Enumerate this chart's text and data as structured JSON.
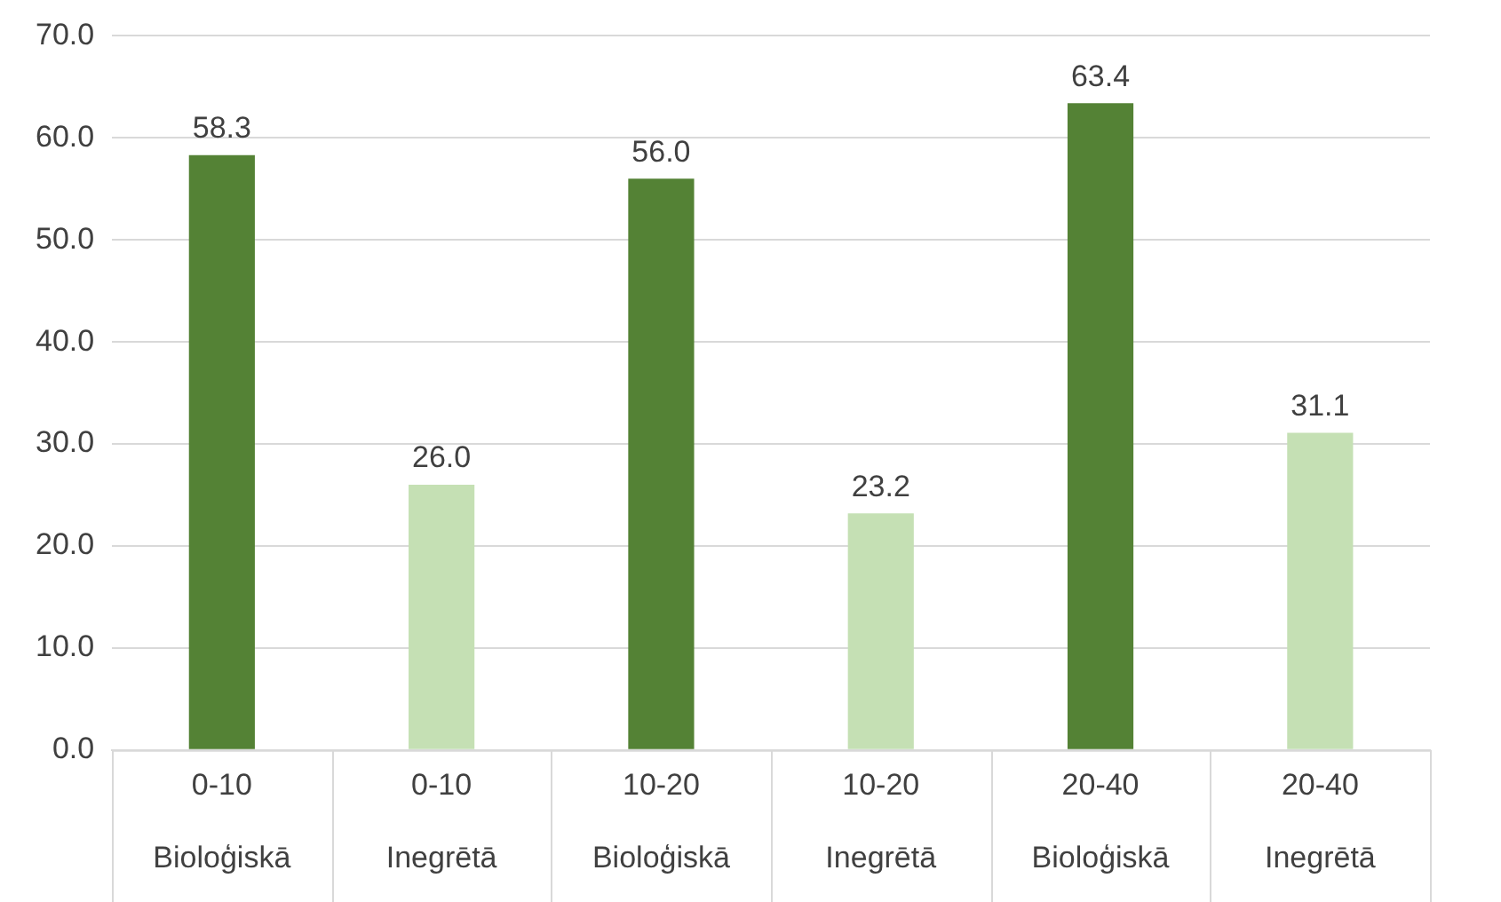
{
  "chart_data": {
    "type": "bar",
    "categories": [
      "0-10\nBioloģiskā",
      "0-10\nInegrētā",
      "10-20\nBioloģiskā",
      "10-20\nInegrētā",
      "20-40\nBioloģiskā",
      "20-40\nInegrētā"
    ],
    "values": [
      58.3,
      26.0,
      56.0,
      23.2,
      63.4,
      31.1
    ],
    "colors": [
      "#548235",
      "#c5e0b4",
      "#548235",
      "#c5e0b4",
      "#548235",
      "#c5e0b4"
    ],
    "ylim": [
      0,
      70
    ],
    "yticks": [
      {
        "value": 0,
        "label": "0.0"
      },
      {
        "value": 10,
        "label": "10.0"
      },
      {
        "value": 20,
        "label": "20.0"
      },
      {
        "value": 30,
        "label": "30.0"
      },
      {
        "value": 40,
        "label": "40.0"
      },
      {
        "value": 50,
        "label": "50.0"
      },
      {
        "value": 60,
        "label": "60.0"
      },
      {
        "value": 70,
        "label": "70.0"
      }
    ],
    "value_labels": [
      "58.3",
      "26.0",
      "56.0",
      "23.2",
      "63.4",
      "31.1"
    ],
    "grid": "y"
  }
}
